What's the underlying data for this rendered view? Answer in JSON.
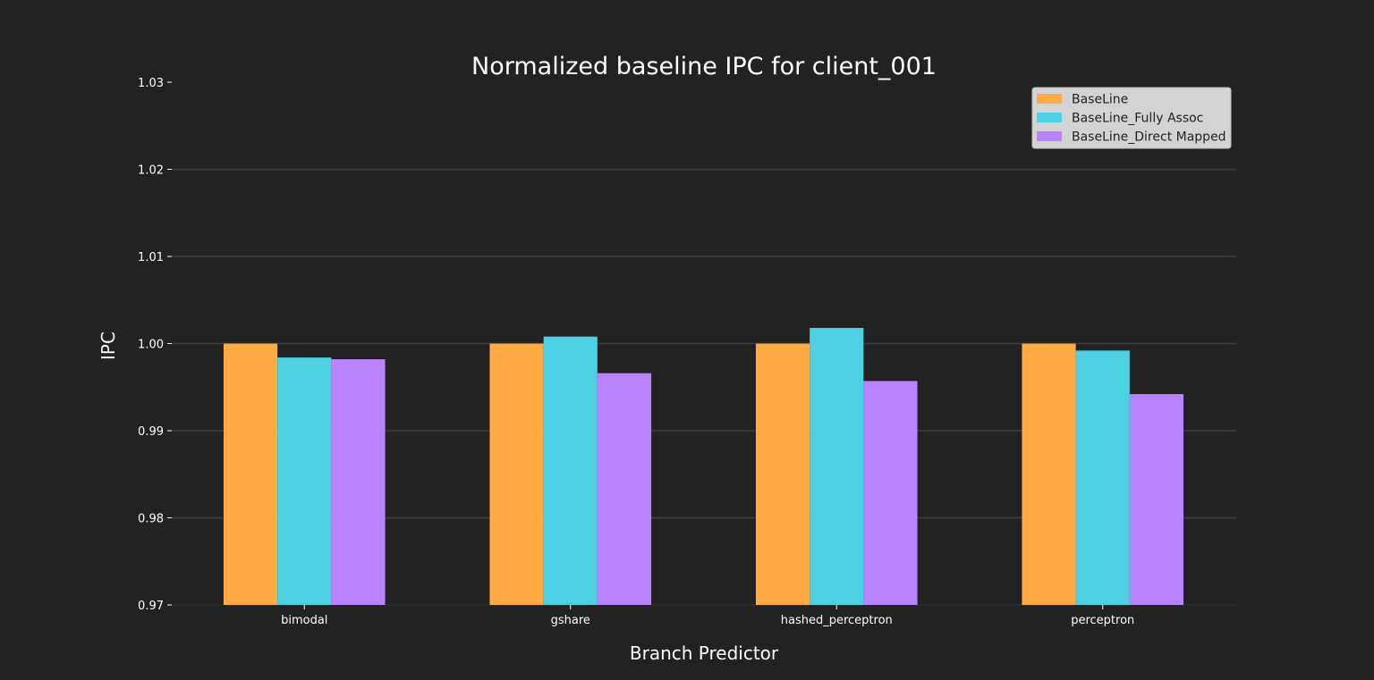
{
  "chart_data": {
    "type": "bar",
    "title": "Normalized baseline IPC for client_001",
    "xlabel": "Branch Predictor",
    "ylabel": "IPC",
    "categories": [
      "bimodal",
      "gshare",
      "hashed_perceptron",
      "perceptron"
    ],
    "series": [
      {
        "name": "BaseLine",
        "color": "#ffaa44",
        "values": [
          1.0,
          1.0,
          1.0,
          1.0
        ]
      },
      {
        "name": "BaseLine_Fully Assoc",
        "color": "#4dd0e1",
        "values": [
          0.9984,
          1.0008,
          1.0018,
          0.9992
        ]
      },
      {
        "name": "BaseLine_Direct Mapped",
        "color": "#b983ff",
        "values": [
          0.9982,
          0.9966,
          0.9957,
          0.9942
        ]
      }
    ],
    "ylim": [
      0.97,
      1.03
    ],
    "yticks": [
      0.97,
      0.98,
      0.99,
      1.0,
      1.01,
      1.02,
      1.03
    ],
    "ytick_labels": [
      "0.97",
      "0.98",
      "0.99",
      "1.00",
      "1.01",
      "1.02",
      "1.03"
    ],
    "grid": true,
    "legend_position": "top-right",
    "colors": {
      "background": "#222222",
      "grid": "#3a3f44",
      "text": "#ffffff",
      "legend_bg": "#d3d3d3"
    }
  }
}
